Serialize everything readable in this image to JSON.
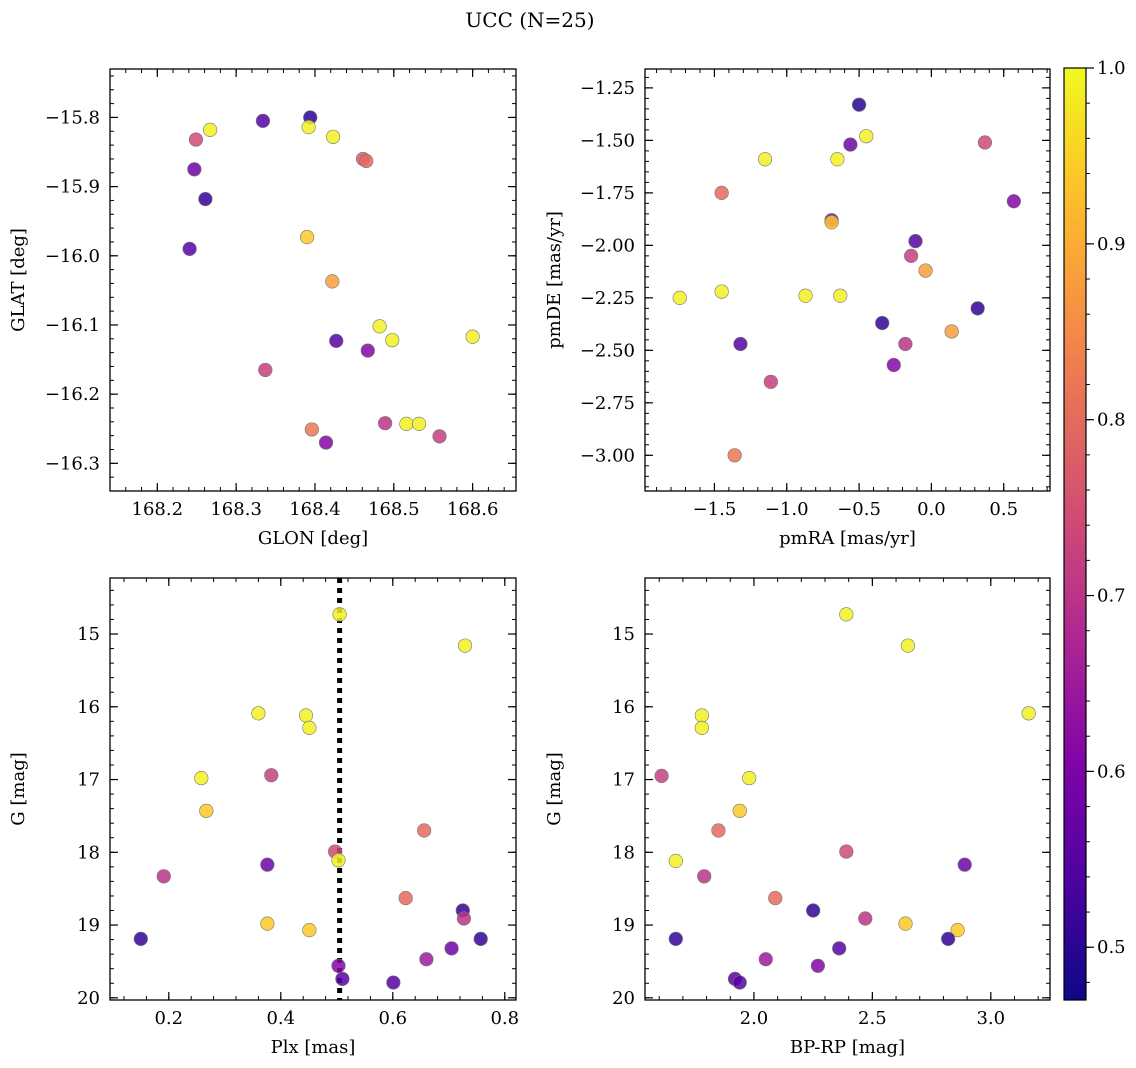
{
  "title": "UCC (N=25)",
  "colorbar": {
    "range": [
      0.47,
      1.0
    ],
    "ticks": [
      0.5,
      0.6,
      0.7,
      0.8,
      0.9,
      1.0
    ],
    "tick_labels": [
      "0.5",
      "0.6",
      "0.7",
      "0.8",
      "0.9",
      "1.0"
    ],
    "colormap": "plasma"
  },
  "chart_data": [
    {
      "type": "scatter",
      "xlabel": "GLON [deg]",
      "ylabel": "GLAT [deg]",
      "xlim": [
        168.14,
        168.655
      ],
      "ylim": [
        -16.34,
        -15.73
      ],
      "x_ticks": [
        168.2,
        168.3,
        168.4,
        168.5,
        168.6
      ],
      "x_tick_labels": [
        "168.2",
        "168.3",
        "168.4",
        "168.5",
        "168.6"
      ],
      "y_ticks": [
        -15.8,
        -15.9,
        -16.0,
        -16.1,
        -16.2,
        -16.3
      ],
      "y_tick_labels": [
        "−15.8",
        "−15.9",
        "−16.0",
        "−16.1",
        "−16.2",
        "−16.3"
      ],
      "y_inverted": false,
      "points": [
        {
          "x": 168.249,
          "y": -15.832,
          "c": 0.74
        },
        {
          "x": 168.267,
          "y": -15.818,
          "c": 0.99
        },
        {
          "x": 168.247,
          "y": -15.875,
          "c": 0.58
        },
        {
          "x": 168.261,
          "y": -15.918,
          "c": 0.51
        },
        {
          "x": 168.241,
          "y": -15.99,
          "c": 0.55
        },
        {
          "x": 168.334,
          "y": -15.805,
          "c": 0.55
        },
        {
          "x": 168.394,
          "y": -15.8,
          "c": 0.5
        },
        {
          "x": 168.392,
          "y": -15.814,
          "c": 0.99
        },
        {
          "x": 168.423,
          "y": -15.828,
          "c": 0.99
        },
        {
          "x": 168.461,
          "y": -15.86,
          "c": 0.77
        },
        {
          "x": 168.465,
          "y": -15.863,
          "c": 0.8
        },
        {
          "x": 168.39,
          "y": -15.973,
          "c": 0.94
        },
        {
          "x": 168.422,
          "y": -16.037,
          "c": 0.88
        },
        {
          "x": 168.427,
          "y": -16.123,
          "c": 0.55
        },
        {
          "x": 168.467,
          "y": -16.137,
          "c": 0.61
        },
        {
          "x": 168.482,
          "y": -16.102,
          "c": 0.99
        },
        {
          "x": 168.498,
          "y": -16.122,
          "c": 0.99
        },
        {
          "x": 168.6,
          "y": -16.117,
          "c": 0.99
        },
        {
          "x": 168.337,
          "y": -16.165,
          "c": 0.72
        },
        {
          "x": 168.396,
          "y": -16.251,
          "c": 0.82
        },
        {
          "x": 168.414,
          "y": -16.27,
          "c": 0.61
        },
        {
          "x": 168.489,
          "y": -16.242,
          "c": 0.7
        },
        {
          "x": 168.516,
          "y": -16.243,
          "c": 0.99
        },
        {
          "x": 168.532,
          "y": -16.243,
          "c": 0.99
        },
        {
          "x": 168.558,
          "y": -16.261,
          "c": 0.72
        }
      ]
    },
    {
      "type": "scatter",
      "xlabel": "pmRA [mas/yr]",
      "ylabel": "pmDE [mas/yr]",
      "xlim": [
        -1.98,
        0.82
      ],
      "ylim": [
        -3.17,
        -1.16
      ],
      "x_ticks": [
        -1.5,
        -1.0,
        -0.5,
        0.0,
        0.5
      ],
      "x_tick_labels": [
        "−1.5",
        "−1.0",
        "−0.5",
        "0.0",
        "0.5"
      ],
      "y_ticks": [
        -1.25,
        -1.5,
        -1.75,
        -2.0,
        -2.25,
        -2.5,
        -2.75,
        -3.0
      ],
      "y_tick_labels": [
        "−1.25",
        "−1.50",
        "−1.75",
        "−2.00",
        "−2.25",
        "−2.50",
        "−2.75",
        "−3.00"
      ],
      "y_inverted": false,
      "points": [
        {
          "x": -0.5,
          "y": -1.33,
          "c": 0.5
        },
        {
          "x": -0.45,
          "y": -1.48,
          "c": 0.99
        },
        {
          "x": -0.56,
          "y": -1.52,
          "c": 0.58
        },
        {
          "x": 0.37,
          "y": -1.51,
          "c": 0.74
        },
        {
          "x": 0.57,
          "y": -1.79,
          "c": 0.61
        },
        {
          "x": -1.15,
          "y": -1.59,
          "c": 0.99
        },
        {
          "x": -0.65,
          "y": -1.59,
          "c": 0.99
        },
        {
          "x": -1.45,
          "y": -1.75,
          "c": 0.8
        },
        {
          "x": -0.69,
          "y": -1.88,
          "c": 0.61
        },
        {
          "x": -0.69,
          "y": -1.89,
          "c": 0.94
        },
        {
          "x": -0.11,
          "y": -1.98,
          "c": 0.55
        },
        {
          "x": -0.14,
          "y": -2.05,
          "c": 0.72
        },
        {
          "x": -0.04,
          "y": -2.12,
          "c": 0.88
        },
        {
          "x": -1.74,
          "y": -2.25,
          "c": 0.99
        },
        {
          "x": -1.45,
          "y": -2.22,
          "c": 0.99
        },
        {
          "x": -0.87,
          "y": -2.24,
          "c": 0.99
        },
        {
          "x": -0.63,
          "y": -2.24,
          "c": 0.99
        },
        {
          "x": 0.32,
          "y": -2.3,
          "c": 0.51
        },
        {
          "x": -0.34,
          "y": -2.37,
          "c": 0.51
        },
        {
          "x": -1.32,
          "y": -2.47,
          "c": 0.55
        },
        {
          "x": -0.18,
          "y": -2.47,
          "c": 0.7
        },
        {
          "x": 0.14,
          "y": -2.41,
          "c": 0.88
        },
        {
          "x": -0.26,
          "y": -2.57,
          "c": 0.61
        },
        {
          "x": -1.11,
          "y": -2.65,
          "c": 0.72
        },
        {
          "x": -1.36,
          "y": -3.0,
          "c": 0.82
        }
      ]
    },
    {
      "type": "scatter",
      "xlabel": "Plx [mas]",
      "ylabel": "G [mag]",
      "xlim": [
        0.095,
        0.82
      ],
      "ylim": [
        20.03,
        14.23
      ],
      "x_ticks": [
        0.2,
        0.4,
        0.6,
        0.8
      ],
      "x_tick_labels": [
        "0.2",
        "0.4",
        "0.6",
        "0.8"
      ],
      "y_ticks": [
        15,
        16,
        17,
        18,
        19,
        20
      ],
      "y_tick_labels": [
        "15",
        "16",
        "17",
        "18",
        "19",
        "20"
      ],
      "y_inverted": true,
      "vline": {
        "x": 0.505,
        "style": "dotted"
      },
      "points": [
        {
          "x": 0.505,
          "y": 14.73,
          "c": 0.99
        },
        {
          "x": 0.729,
          "y": 15.16,
          "c": 0.99
        },
        {
          "x": 0.36,
          "y": 16.09,
          "c": 0.99
        },
        {
          "x": 0.445,
          "y": 16.12,
          "c": 0.99
        },
        {
          "x": 0.451,
          "y": 16.29,
          "c": 0.99
        },
        {
          "x": 0.258,
          "y": 16.98,
          "c": 0.99
        },
        {
          "x": 0.383,
          "y": 16.94,
          "c": 0.72
        },
        {
          "x": 0.267,
          "y": 17.43,
          "c": 0.94
        },
        {
          "x": 0.656,
          "y": 17.7,
          "c": 0.8
        },
        {
          "x": 0.497,
          "y": 17.99,
          "c": 0.74
        },
        {
          "x": 0.503,
          "y": 18.11,
          "c": 0.99
        },
        {
          "x": 0.376,
          "y": 18.17,
          "c": 0.58
        },
        {
          "x": 0.191,
          "y": 18.33,
          "c": 0.7
        },
        {
          "x": 0.623,
          "y": 18.63,
          "c": 0.8
        },
        {
          "x": 0.725,
          "y": 18.8,
          "c": 0.51
        },
        {
          "x": 0.727,
          "y": 18.91,
          "c": 0.7
        },
        {
          "x": 0.376,
          "y": 18.98,
          "c": 0.94
        },
        {
          "x": 0.451,
          "y": 19.07,
          "c": 0.94
        },
        {
          "x": 0.15,
          "y": 19.19,
          "c": 0.51
        },
        {
          "x": 0.757,
          "y": 19.19,
          "c": 0.51
        },
        {
          "x": 0.705,
          "y": 19.32,
          "c": 0.58
        },
        {
          "x": 0.66,
          "y": 19.47,
          "c": 0.65
        },
        {
          "x": 0.503,
          "y": 19.56,
          "c": 0.61
        },
        {
          "x": 0.51,
          "y": 19.74,
          "c": 0.55
        },
        {
          "x": 0.601,
          "y": 19.79,
          "c": 0.55
        }
      ]
    },
    {
      "type": "scatter",
      "xlabel": "BP-RP [mag]",
      "ylabel": "G [mag]",
      "xlim": [
        1.54,
        3.25
      ],
      "ylim": [
        20.03,
        14.23
      ],
      "x_ticks": [
        2.0,
        2.5,
        3.0
      ],
      "x_tick_labels": [
        "2.0",
        "2.5",
        "3.0"
      ],
      "y_ticks": [
        15,
        16,
        17,
        18,
        19,
        20
      ],
      "y_tick_labels": [
        "15",
        "16",
        "17",
        "18",
        "19",
        "20"
      ],
      "y_inverted": true,
      "points": [
        {
          "x": 2.39,
          "y": 14.73,
          "c": 0.99
        },
        {
          "x": 2.65,
          "y": 15.16,
          "c": 0.99
        },
        {
          "x": 3.16,
          "y": 16.09,
          "c": 0.99
        },
        {
          "x": 1.78,
          "y": 16.12,
          "c": 0.99
        },
        {
          "x": 1.78,
          "y": 16.29,
          "c": 0.99
        },
        {
          "x": 1.61,
          "y": 16.95,
          "c": 0.72
        },
        {
          "x": 1.98,
          "y": 16.98,
          "c": 0.99
        },
        {
          "x": 1.94,
          "y": 17.43,
          "c": 0.94
        },
        {
          "x": 1.85,
          "y": 17.7,
          "c": 0.8
        },
        {
          "x": 2.39,
          "y": 17.99,
          "c": 0.74
        },
        {
          "x": 1.67,
          "y": 18.12,
          "c": 0.99
        },
        {
          "x": 2.89,
          "y": 18.17,
          "c": 0.58
        },
        {
          "x": 1.79,
          "y": 18.33,
          "c": 0.7
        },
        {
          "x": 2.09,
          "y": 18.63,
          "c": 0.8
        },
        {
          "x": 2.25,
          "y": 18.8,
          "c": 0.51
        },
        {
          "x": 2.47,
          "y": 18.91,
          "c": 0.7
        },
        {
          "x": 2.64,
          "y": 18.98,
          "c": 0.94
        },
        {
          "x": 2.86,
          "y": 19.07,
          "c": 0.94
        },
        {
          "x": 1.67,
          "y": 19.19,
          "c": 0.51
        },
        {
          "x": 2.82,
          "y": 19.19,
          "c": 0.51
        },
        {
          "x": 2.36,
          "y": 19.32,
          "c": 0.55
        },
        {
          "x": 2.05,
          "y": 19.47,
          "c": 0.65
        },
        {
          "x": 2.27,
          "y": 19.56,
          "c": 0.61
        },
        {
          "x": 1.92,
          "y": 19.74,
          "c": 0.55
        },
        {
          "x": 1.94,
          "y": 19.79,
          "c": 0.55
        }
      ]
    }
  ]
}
